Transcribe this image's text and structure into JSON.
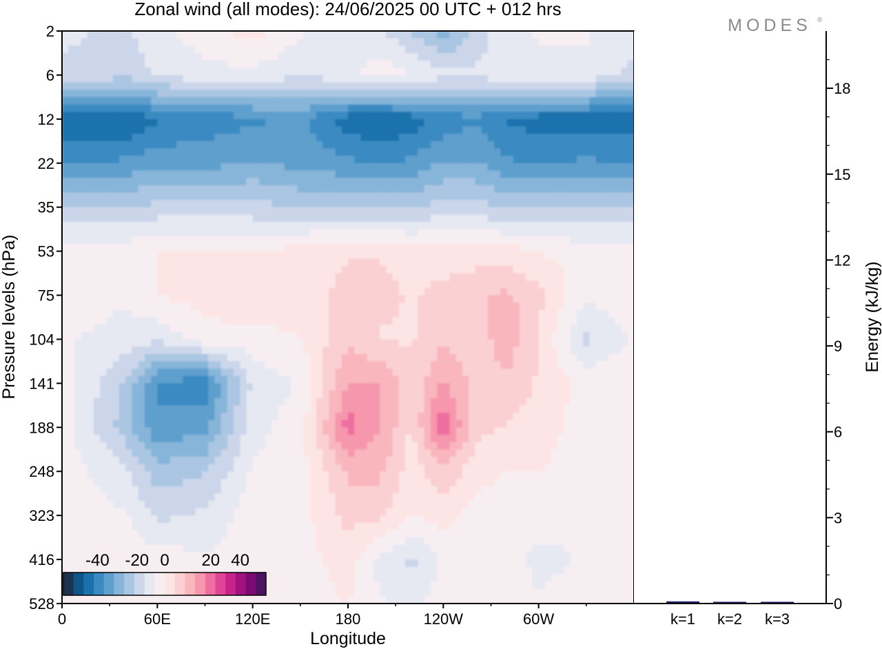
{
  "title": "Zonal wind (all modes):  24/06/2025  00 UTC  + 012 hrs",
  "logo_text": "MODES",
  "logo_mark": "®",
  "chart_data": [
    {
      "type": "heatmap",
      "variable": "Zonal wind",
      "xlabel": "Longitude",
      "ylabel": "Pressure levels (hPa)",
      "x_ticks": [
        "0",
        "60E",
        "120E",
        "180",
        "120W",
        "60W"
      ],
      "x_range_deg": [
        0,
        360
      ],
      "y_ticks": [
        "2",
        "6",
        "12",
        "22",
        "35",
        "53",
        "75",
        "104",
        "141",
        "188",
        "248",
        "323",
        "416",
        "528"
      ],
      "y_scale": "model levels (pressure decreasing upward)",
      "colorbar": {
        "ticks": [
          "-40",
          "-20",
          "0",
          "20",
          "40"
        ],
        "range": [
          -45,
          45
        ],
        "colors": [
          "#1d3350",
          "#0f5587",
          "#1a72ad",
          "#3b8bc2",
          "#5e9fce",
          "#86b5d9",
          "#abc6e2",
          "#cbd6ea",
          "#e6e8f2",
          "#f7eef2",
          "#fde5e5",
          "#fbd0d3",
          "#f9b6bd",
          "#f697ad",
          "#ef6ea0",
          "#e04595",
          "#c8238a",
          "#a1127e",
          "#7a0a74",
          "#4e1360"
        ]
      },
      "approx_values_by_level_and_longitude": {
        "longitudes": [
          0,
          40,
          60,
          90,
          120,
          150,
          180,
          200,
          220,
          240,
          260,
          280,
          300,
          330,
          360
        ],
        "levels": [
          "2",
          "6",
          "12",
          "22",
          "35",
          "53",
          "75",
          "104",
          "141",
          "188",
          "248",
          "323",
          "416",
          "528"
        ],
        "values": [
          [
            -8,
            -10,
            -6,
            -2,
            2,
            -4,
            -6,
            -8,
            -14,
            -20,
            -12,
            -6,
            -4,
            -4,
            -8
          ],
          [
            -10,
            -12,
            -8,
            -6,
            -6,
            -8,
            -6,
            -2,
            -4,
            -8,
            -8,
            -6,
            -6,
            -6,
            -10
          ],
          [
            -34,
            -36,
            -32,
            -30,
            -28,
            -26,
            -34,
            -36,
            -34,
            -30,
            -28,
            -32,
            -34,
            -34,
            -34
          ],
          [
            -28,
            -26,
            -24,
            -24,
            -22,
            -24,
            -26,
            -28,
            -26,
            -22,
            -22,
            -26,
            -28,
            -26,
            -28
          ],
          [
            -14,
            -14,
            -12,
            -12,
            -12,
            -14,
            -14,
            -14,
            -14,
            -12,
            -12,
            -14,
            -14,
            -14,
            -14
          ],
          [
            -2,
            -2,
            0,
            0,
            0,
            2,
            4,
            4,
            2,
            2,
            2,
            2,
            0,
            -2,
            -2
          ],
          [
            -2,
            -4,
            0,
            2,
            4,
            2,
            6,
            6,
            4,
            6,
            8,
            10,
            6,
            -4,
            0
          ],
          [
            -4,
            -6,
            -8,
            -2,
            -2,
            0,
            8,
            4,
            4,
            8,
            6,
            12,
            4,
            -10,
            -4
          ],
          [
            -2,
            -14,
            -28,
            -30,
            -8,
            -4,
            14,
            14,
            6,
            14,
            8,
            8,
            4,
            -2,
            0
          ],
          [
            -2,
            -16,
            -26,
            -24,
            -6,
            -2,
            20,
            14,
            4,
            22,
            6,
            4,
            2,
            -2,
            0
          ],
          [
            -2,
            -8,
            -16,
            -14,
            -4,
            -2,
            10,
            10,
            2,
            8,
            2,
            0,
            0,
            -2,
            -2
          ],
          [
            -2,
            -4,
            -10,
            -8,
            -2,
            -2,
            6,
            6,
            0,
            2,
            -2,
            -4,
            -2,
            -4,
            -2
          ],
          [
            -2,
            -2,
            -2,
            -4,
            -2,
            -2,
            2,
            -6,
            -10,
            -4,
            -2,
            -2,
            -6,
            -4,
            -2
          ],
          [
            -2,
            -2,
            -2,
            -2,
            -2,
            -2,
            0,
            -4,
            -6,
            -2,
            -2,
            -2,
            -4,
            -2,
            -2
          ]
        ]
      }
    },
    {
      "type": "bar",
      "categories": [
        "k=1",
        "k=2",
        "k=3"
      ],
      "values": [
        0.05,
        0.02,
        0.01
      ],
      "ylabel": "Energy (kJ/kg)",
      "y_ticks": [
        "0",
        "3",
        "6",
        "9",
        "12",
        "15",
        "18"
      ],
      "ylim": [
        0,
        20
      ]
    }
  ]
}
